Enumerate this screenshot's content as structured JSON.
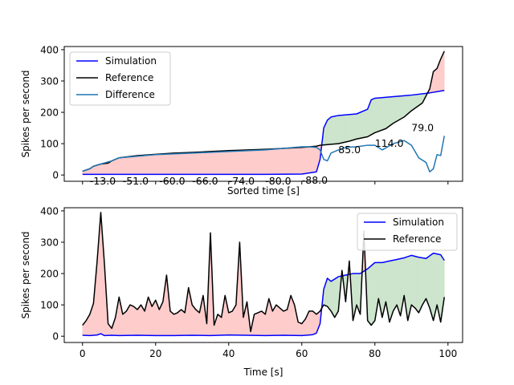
{
  "chart_data": [
    {
      "type": "line",
      "xlabel": "Sorted time [s]",
      "ylabel": "Spikes per second",
      "ylim": [
        -20,
        410
      ],
      "yticks": [
        0,
        100,
        200,
        300,
        400
      ],
      "xticks": [
        0,
        20,
        40,
        60,
        80,
        100
      ],
      "show_xtick_labels": false,
      "legend": {
        "position": "upper-left",
        "entries": [
          "Simulation",
          "Reference",
          "Difference"
        ]
      },
      "grid": false,
      "series": [
        {
          "name": "Simulation",
          "color": "#0000ff",
          "x": [
            0,
            10,
            20,
            30,
            40,
            50,
            60,
            64,
            65,
            66,
            67,
            68,
            70,
            75,
            78,
            79,
            80,
            85,
            90,
            95,
            98,
            99
          ],
          "y": [
            2,
            2,
            2,
            2,
            2,
            2,
            3,
            10,
            50,
            150,
            175,
            185,
            190,
            195,
            210,
            240,
            245,
            250,
            255,
            262,
            268,
            270
          ]
        },
        {
          "name": "Reference",
          "color": "#000000",
          "x": [
            0,
            2,
            3,
            5,
            7,
            8,
            10,
            15,
            20,
            25,
            30,
            40,
            50,
            55,
            60,
            64,
            65,
            68,
            70,
            73,
            75,
            78,
            80,
            83,
            85,
            88,
            90,
            93,
            95,
            96,
            97,
            98,
            99
          ],
          "y": [
            12,
            20,
            28,
            35,
            38,
            45,
            55,
            62,
            66,
            70,
            72,
            78,
            82,
            85,
            88,
            92,
            95,
            98,
            100,
            108,
            115,
            122,
            135,
            148,
            165,
            185,
            205,
            230,
            275,
            330,
            340,
            370,
            395
          ]
        },
        {
          "name": "Difference",
          "color": "#1f77b4",
          "x": [
            0,
            2,
            3,
            5,
            8,
            10,
            20,
            30,
            40,
            50,
            55,
            60,
            62,
            64,
            65,
            66,
            67,
            68,
            70,
            72,
            75,
            78,
            80,
            82,
            85,
            88,
            90,
            92,
            94,
            95,
            96,
            97,
            98,
            99
          ],
          "y": [
            12,
            20,
            28,
            35,
            45,
            55,
            65,
            70,
            75,
            80,
            85,
            90,
            90,
            88,
            80,
            50,
            45,
            70,
            80,
            88,
            90,
            95,
            95,
            80,
            100,
            110,
            95,
            55,
            40,
            10,
            20,
            65,
            62,
            125
          ]
        }
      ],
      "fills": [
        {
          "between": [
            "Simulation",
            "Reference"
          ],
          "where": "reference_above",
          "color": "#ffcccc"
        },
        {
          "between": [
            "Simulation",
            "Reference"
          ],
          "where": "simulation_above",
          "color": "#cce5cc"
        }
      ],
      "annotations": [
        {
          "text": "-13.0",
          "x": 2,
          "y": -20
        },
        {
          "text": "-51.0",
          "x": 11,
          "y": -20
        },
        {
          "text": "-60.0",
          "x": 21,
          "y": -20
        },
        {
          "text": "-66.0",
          "x": 30,
          "y": -20
        },
        {
          "text": "-74.0",
          "x": 40,
          "y": -20
        },
        {
          "text": "-80.0",
          "x": 50,
          "y": -20
        },
        {
          "text": "-88.0",
          "x": 60,
          "y": -17
        },
        {
          "text": "85.0",
          "x": 70,
          "y": 80
        },
        {
          "text": "114.0",
          "x": 80,
          "y": 100
        },
        {
          "text": "79.0",
          "x": 90,
          "y": 150
        }
      ]
    },
    {
      "type": "line",
      "xlabel": "Time [s]",
      "ylabel": "Spikes per second",
      "ylim": [
        -20,
        410
      ],
      "yticks": [
        0,
        100,
        200,
        300,
        400
      ],
      "xticks": [
        0,
        20,
        40,
        60,
        80,
        100
      ],
      "show_xtick_labels": true,
      "legend": {
        "position": "upper-right",
        "entries": [
          "Simulation",
          "Reference"
        ]
      },
      "grid": false,
      "series": [
        {
          "name": "Simulation",
          "color": "#0000ff",
          "x": [
            0,
            2,
            4,
            5,
            6,
            8,
            10,
            15,
            20,
            25,
            30,
            35,
            40,
            45,
            50,
            55,
            60,
            63,
            64,
            65,
            66,
            67,
            68,
            70,
            72,
            74,
            76,
            78,
            80,
            82,
            84,
            86,
            88,
            90,
            92,
            94,
            96,
            98,
            99
          ],
          "y": [
            3,
            2,
            4,
            8,
            2,
            3,
            2,
            3,
            2,
            2,
            3,
            2,
            4,
            3,
            2,
            3,
            2,
            5,
            10,
            40,
            150,
            185,
            175,
            190,
            195,
            200,
            200,
            215,
            235,
            235,
            240,
            245,
            250,
            258,
            252,
            248,
            265,
            260,
            242
          ]
        },
        {
          "name": "Reference",
          "color": "#000000",
          "x": [
            0,
            1,
            2,
            3,
            4,
            5,
            6,
            7,
            8,
            9,
            10,
            11,
            12,
            13,
            14,
            15,
            16,
            17,
            18,
            19,
            20,
            21,
            22,
            23,
            24,
            25,
            26,
            27,
            28,
            29,
            30,
            31,
            32,
            33,
            34,
            35,
            36,
            37,
            38,
            39,
            40,
            41,
            42,
            43,
            44,
            45,
            46,
            47,
            48,
            49,
            50,
            51,
            52,
            53,
            54,
            55,
            56,
            57,
            58,
            59,
            60,
            61,
            62,
            63,
            64,
            65,
            66,
            67,
            68,
            69,
            70,
            71,
            72,
            73,
            74,
            75,
            76,
            77,
            78,
            79,
            80,
            81,
            82,
            83,
            84,
            85,
            86,
            87,
            88,
            89,
            90,
            91,
            92,
            93,
            94,
            95,
            96,
            97,
            98,
            99
          ],
          "y": [
            35,
            50,
            70,
            105,
            240,
            395,
            230,
            40,
            25,
            60,
            125,
            70,
            80,
            100,
            95,
            85,
            100,
            80,
            125,
            95,
            115,
            85,
            110,
            195,
            80,
            70,
            75,
            85,
            75,
            155,
            100,
            85,
            75,
            130,
            40,
            330,
            35,
            70,
            60,
            130,
            75,
            80,
            100,
            300,
            60,
            110,
            15,
            70,
            75,
            80,
            70,
            120,
            80,
            100,
            90,
            80,
            85,
            130,
            100,
            45,
            40,
            55,
            80,
            80,
            70,
            80,
            100,
            95,
            80,
            60,
            80,
            210,
            110,
            240,
            50,
            100,
            70,
            335,
            50,
            35,
            50,
            120,
            60,
            110,
            45,
            80,
            100,
            65,
            130,
            50,
            100,
            90,
            75,
            100,
            120,
            90,
            50,
            100,
            45,
            125
          ]
        }
      ],
      "fills": [
        {
          "between": [
            "Simulation",
            "Reference"
          ],
          "where": "reference_above",
          "color": "#ffcccc"
        },
        {
          "between": [
            "Simulation",
            "Reference"
          ],
          "where": "simulation_above",
          "color": "#cce5cc"
        }
      ]
    }
  ]
}
